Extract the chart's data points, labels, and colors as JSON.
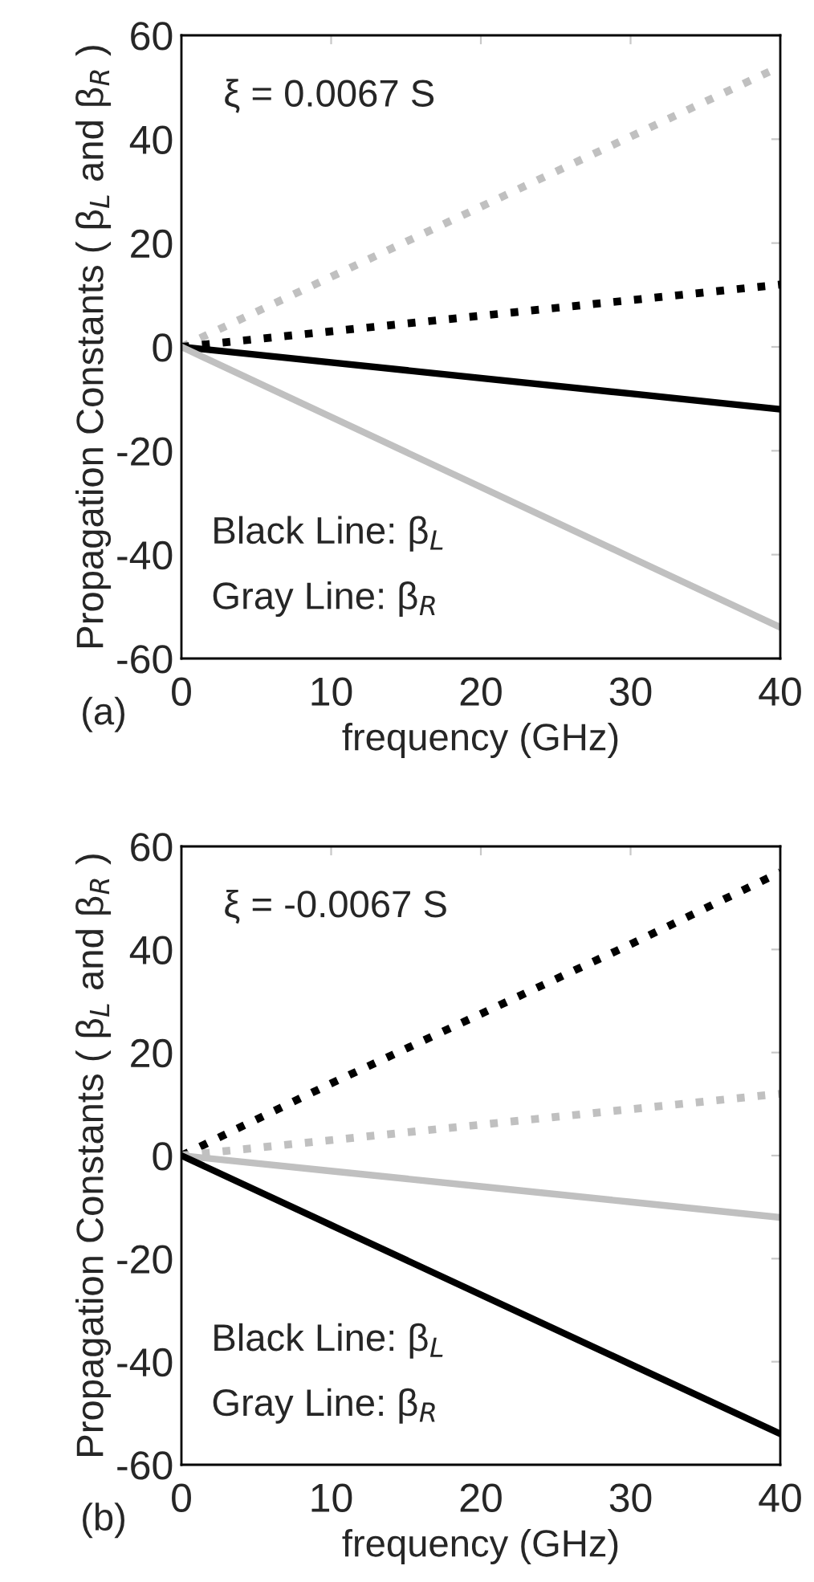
{
  "chart_data": [
    {
      "type": "line",
      "xlabel": "frequency (GHz)",
      "ylabel": "Propagation Constants ( β$_{L}$ and β$_{R}$ )",
      "x": [
        0,
        10,
        20,
        30,
        40
      ],
      "xlim": [
        0,
        40
      ],
      "ylim": [
        -60,
        60
      ],
      "xticks": [
        0,
        10,
        20,
        30,
        40
      ],
      "yticks": [
        -60,
        -40,
        -20,
        0,
        20,
        40,
        60
      ],
      "grid": false,
      "legend": false,
      "series": [
        {
          "color": "#c0c0c0",
          "line_style": "dotted",
          "values": [
            0,
            13.5,
            27,
            40.5,
            54
          ]
        },
        {
          "color": "#000000",
          "line_style": "dotted",
          "values": [
            0,
            3,
            6,
            9,
            12
          ]
        },
        {
          "color": "#000000",
          "line_style": "solid",
          "values": [
            0,
            -3,
            -6,
            -9,
            -12
          ]
        },
        {
          "color": "#c0c0c0",
          "line_style": "solid",
          "values": [
            0,
            -13.5,
            -27,
            -40.5,
            -54
          ]
        }
      ],
      "annotations": [
        "ξ = 0.0067 S",
        "Black Line: β$_{L}$",
        "Gray Line: β$_{R}$",
        "(a)"
      ]
    },
    {
      "type": "line",
      "xlabel": "frequency (GHz)",
      "ylabel": "Propagation Constants ( β$_{L}$ and β$_{R}$ )",
      "x": [
        0,
        10,
        20,
        30,
        40
      ],
      "xlim": [
        0,
        40
      ],
      "ylim": [
        -60,
        60
      ],
      "xticks": [
        0,
        10,
        20,
        30,
        40
      ],
      "yticks": [
        -60,
        -40,
        -20,
        0,
        20,
        40,
        60
      ],
      "grid": false,
      "legend": false,
      "series": [
        {
          "color": "#000000",
          "line_style": "dotted",
          "values": [
            0,
            14,
            27.5,
            41,
            55
          ]
        },
        {
          "color": "#c0c0c0",
          "line_style": "dotted",
          "values": [
            0,
            3,
            6,
            9,
            12
          ]
        },
        {
          "color": "#c0c0c0",
          "line_style": "solid",
          "values": [
            0,
            -3,
            -6,
            -9,
            -12
          ]
        },
        {
          "color": "#000000",
          "line_style": "solid",
          "values": [
            0,
            -13.5,
            -27,
            -40.5,
            -54
          ]
        }
      ],
      "annotations": [
        "ξ = -0.0067 S",
        "Black Line: β$_{L}$",
        "Gray Line: β$_{R}$",
        "(b)"
      ]
    }
  ]
}
